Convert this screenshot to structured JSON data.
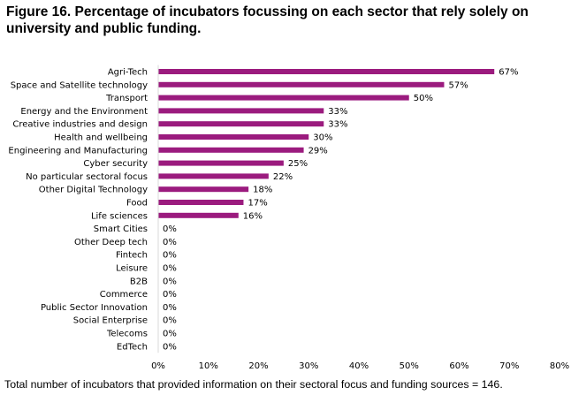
{
  "figure": {
    "title": "Figure 16. Percentage of incubators focussing on each sector that rely solely on university and public funding.",
    "note": "Total number of incubators that provided information on their sectoral focus and funding sources = 146."
  },
  "colors": {
    "bar": "#9b1b7e",
    "axis": "#d9d9d9",
    "text": "#000000"
  },
  "chart_data": {
    "type": "bar",
    "orientation": "horizontal",
    "title": "Figure 16. Percentage of incubators focussing on each sector that rely solely on university and public funding.",
    "xlabel": "",
    "ylabel": "",
    "categories": [
      "Agri-Tech",
      "Space and Satellite technology",
      "Transport",
      "Energy and the Environment",
      "Creative industries and design",
      "Health and wellbeing",
      "Engineering and Manufacturing",
      "Cyber security",
      "No particular sectoral focus",
      "Other Digital Technology",
      "Food",
      "Life sciences",
      "Smart Cities",
      "Other Deep tech",
      "Fintech",
      "Leisure",
      "B2B",
      "Commerce",
      "Public Sector Innovation",
      "Social Enterprise",
      "Telecoms",
      "EdTech"
    ],
    "values": [
      67,
      57,
      50,
      33,
      33,
      30,
      29,
      25,
      22,
      18,
      17,
      16,
      0,
      0,
      0,
      0,
      0,
      0,
      0,
      0,
      0,
      0
    ],
    "value_labels": [
      "67%",
      "57%",
      "50%",
      "33%",
      "33%",
      "30%",
      "29%",
      "25%",
      "22%",
      "18%",
      "17%",
      "16%",
      "0%",
      "0%",
      "0%",
      "0%",
      "0%",
      "0%",
      "0%",
      "0%",
      "0%",
      "0%"
    ],
    "xlim": [
      0,
      80
    ],
    "xticks": [
      "0%",
      "10%",
      "20%",
      "30%",
      "40%",
      "50%",
      "60%",
      "70%",
      "80%"
    ],
    "grid": false,
    "legend": "none"
  }
}
